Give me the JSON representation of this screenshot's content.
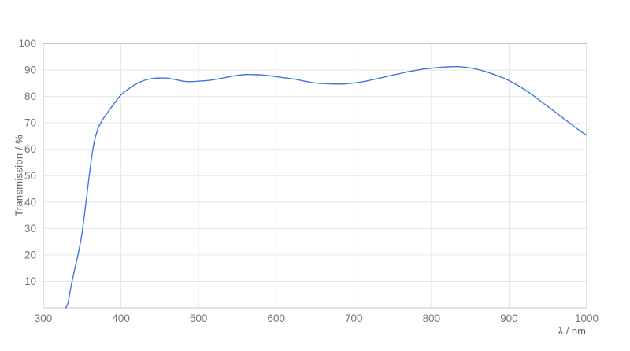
{
  "chart_data": {
    "type": "line",
    "xlabel": "λ / nm",
    "ylabel": "Transmission / %",
    "xlim": [
      300,
      1000
    ],
    "ylim": [
      0,
      100
    ],
    "x_ticks": [
      300,
      400,
      500,
      600,
      700,
      800,
      900,
      1000
    ],
    "y_ticks": [
      10,
      20,
      30,
      40,
      50,
      60,
      70,
      80,
      90,
      100
    ],
    "grid": true,
    "legend_position": "none",
    "x": [
      329,
      332,
      335,
      340,
      345,
      350,
      355,
      360,
      365,
      370,
      375,
      380,
      390,
      400,
      410,
      420,
      430,
      440,
      450,
      460,
      470,
      480,
      490,
      500,
      510,
      520,
      530,
      540,
      550,
      560,
      570,
      580,
      590,
      600,
      610,
      620,
      630,
      640,
      650,
      660,
      670,
      680,
      690,
      700,
      710,
      720,
      730,
      740,
      750,
      760,
      770,
      780,
      790,
      800,
      810,
      820,
      830,
      840,
      850,
      860,
      870,
      880,
      890,
      900,
      910,
      920,
      930,
      940,
      950,
      960,
      970,
      980,
      990,
      1000
    ],
    "values": [
      0,
      2,
      7,
      14,
      20.5,
      28.5,
      40,
      52,
      62,
      67.5,
      70.5,
      72.8,
      76.8,
      80.6,
      82.9,
      84.8,
      86.1,
      86.8,
      87.0,
      86.9,
      86.4,
      85.8,
      85.6,
      85.8,
      86.0,
      86.4,
      86.9,
      87.5,
      88.0,
      88.3,
      88.3,
      88.2,
      87.9,
      87.5,
      87.1,
      86.7,
      86.2,
      85.6,
      85.1,
      84.9,
      84.8,
      84.7,
      84.8,
      85.1,
      85.5,
      86.1,
      86.7,
      87.4,
      88.1,
      88.7,
      89.4,
      89.9,
      90.4,
      90.7,
      91.0,
      91.2,
      91.3,
      91.2,
      90.8,
      90.2,
      89.4,
      88.4,
      87.3,
      86.0,
      84.4,
      82.6,
      80.6,
      78.4,
      76.2,
      74.0,
      71.7,
      69.5,
      67.3,
      65.3
    ],
    "colors": {
      "line": "#3e78dd",
      "grid": "#e6e6e6",
      "border": "#c9c9c9",
      "tick_text": "#757575",
      "axis_title_text": "#5f5f5f",
      "background": "#ffffff"
    }
  }
}
